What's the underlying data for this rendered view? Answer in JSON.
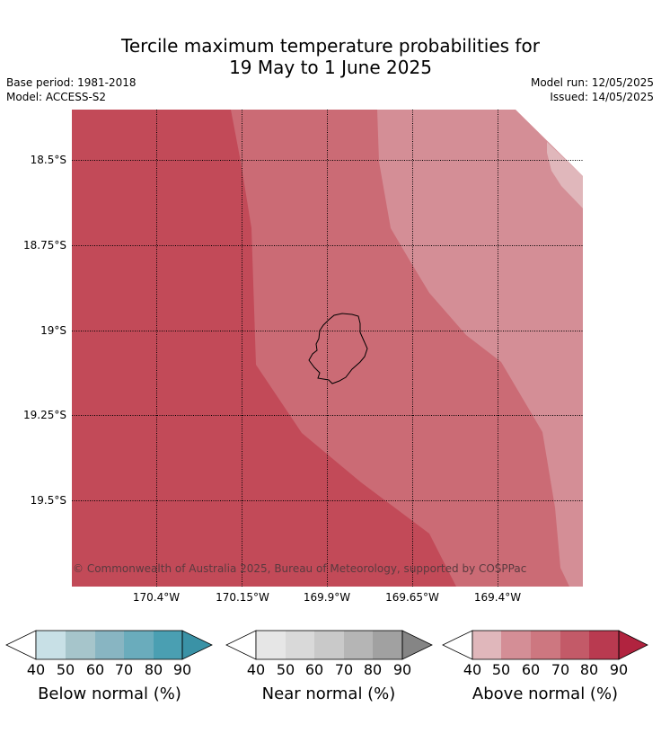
{
  "title": {
    "line1": "Tercile maximum temperature probabilities for",
    "line2": "19 May to 1 June 2025"
  },
  "meta": {
    "base_period": "Base period: 1981-2018",
    "model": "Model: ACCESS-S2",
    "model_run": "Model run: 12/05/2025",
    "issued": "Issued: 14/05/2025"
  },
  "map": {
    "lat_labels": [
      "18.5°S",
      "18.75°S",
      "19°S",
      "19.25°S",
      "19.5°S"
    ],
    "lon_labels": [
      "170.4°W",
      "170.15°W",
      "169.9°W",
      "169.65°W",
      "169.4°W"
    ],
    "copyright": "© Commonwealth of Australia 2025, Bureau of Meteorology, supported by COSPPac",
    "colors": {
      "above_90": "#c24a58",
      "above_70": "#cb6b75",
      "above_60": "#d48e96",
      "above_50": "#e0b7bb"
    }
  },
  "colorbars": [
    {
      "label": "Below normal (%)",
      "ticks": [
        "40",
        "50",
        "60",
        "70",
        "80",
        "90"
      ],
      "colors": [
        "#c8e0e6",
        "#a6c5cb",
        "#88b5c2",
        "#6aacbc",
        "#4a9fb2",
        "#3a92a6"
      ]
    },
    {
      "label": "Near normal (%)",
      "ticks": [
        "40",
        "50",
        "60",
        "70",
        "80",
        "90"
      ],
      "colors": [
        "#e6e6e6",
        "#d9d9d9",
        "#c9c9c9",
        "#b5b5b5",
        "#a1a1a1",
        "#858585"
      ]
    },
    {
      "label": "Above normal (%)",
      "ticks": [
        "40",
        "50",
        "60",
        "70",
        "80",
        "90"
      ],
      "colors": [
        "#e0b7bb",
        "#d48e96",
        "#cd7780",
        "#c35a68",
        "#b93a50",
        "#b1233f"
      ]
    }
  ]
}
